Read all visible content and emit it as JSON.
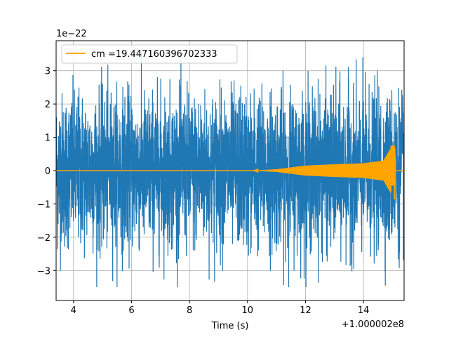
{
  "chart_data": {
    "type": "line",
    "xlabel": "Time (s)",
    "ylabel": "",
    "x_offset_text": "+1.000002e8",
    "y_scale_text": "1e−22",
    "xlim": [
      3.4,
      15.4
    ],
    "ylim": [
      -3.9,
      3.9
    ],
    "x_ticks": [
      4,
      6,
      8,
      10,
      12,
      14
    ],
    "x_tick_labels": [
      "4",
      "6",
      "8",
      "10",
      "12",
      "14"
    ],
    "y_ticks": [
      -3,
      -2,
      -1,
      0,
      1,
      2,
      3
    ],
    "y_tick_labels": [
      "−3",
      "−2",
      "−1",
      "0",
      "1",
      "2",
      "3"
    ],
    "grid": true,
    "legend": {
      "position": "upper-left",
      "entries": [
        "cm =19.447160396702333"
      ]
    },
    "series": [
      {
        "kind": "noise",
        "color": "#1f77b4",
        "x_range": [
          3.4,
          15.4
        ],
        "typical_band": [
          -1.8,
          1.9
        ],
        "max_peak": 3.55,
        "min_trough": -3.5
      },
      {
        "name": "cm =19.447160396702333",
        "kind": "chirp",
        "color": "#ffa500",
        "x_range": [
          3.4,
          15.4
        ],
        "chirp_start": 10.2,
        "merger": 15.07,
        "amplitude_points": [
          [
            10.2,
            0.0
          ],
          [
            11.0,
            0.04
          ],
          [
            12.0,
            0.15
          ],
          [
            13.0,
            0.19
          ],
          [
            14.0,
            0.22
          ],
          [
            14.7,
            0.3
          ],
          [
            15.0,
            0.75
          ],
          [
            15.07,
            -0.85
          ],
          [
            15.12,
            0.0
          ]
        ]
      }
    ]
  }
}
